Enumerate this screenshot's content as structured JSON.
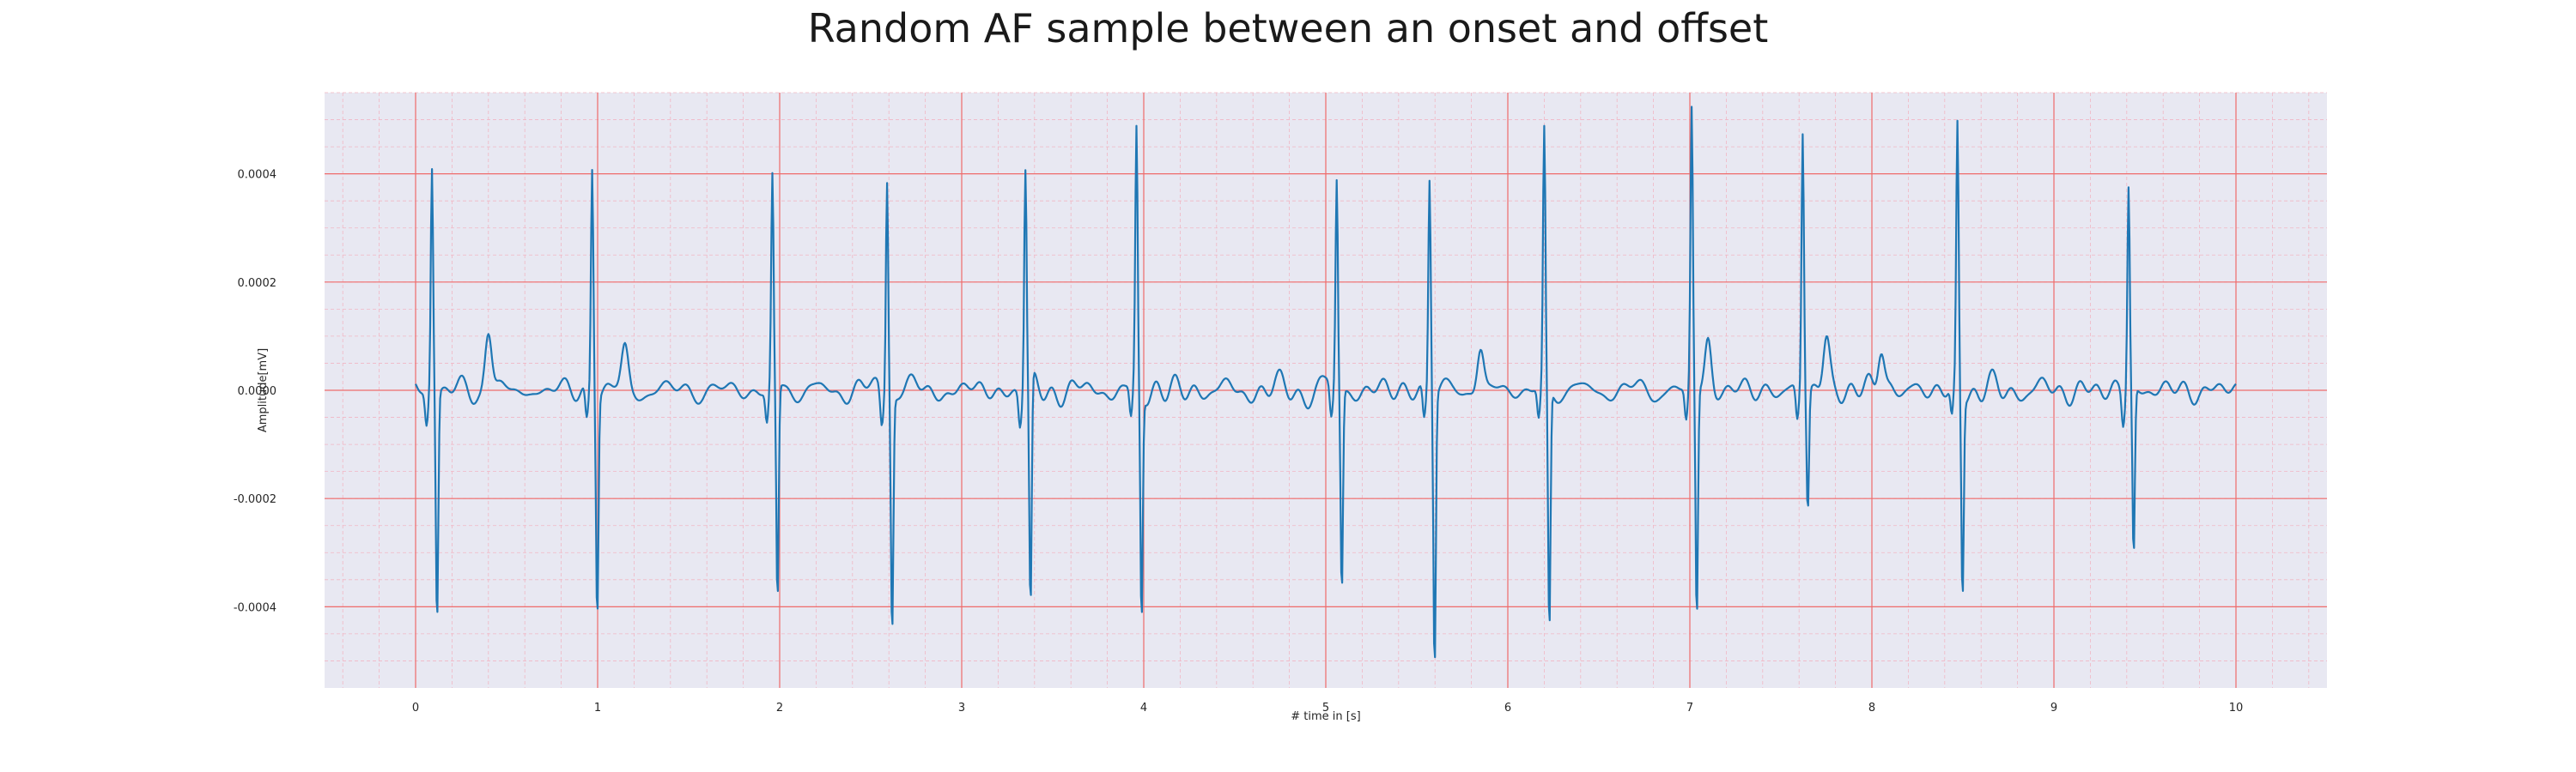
{
  "chart_data": {
    "type": "line",
    "title": "Random AF sample between an onset and offset",
    "xlabel": "# time in [s]",
    "ylabel": "Amplitude[mV]",
    "xlim": [
      -0.5,
      10.5
    ],
    "ylim": [
      -0.00055,
      0.00055
    ],
    "xticks": [
      0,
      1,
      2,
      3,
      4,
      5,
      6,
      7,
      8,
      9,
      10
    ],
    "xtick_labels": [
      "0",
      "1",
      "2",
      "3",
      "4",
      "5",
      "6",
      "7",
      "8",
      "9",
      "10"
    ],
    "yticks": [
      -0.0004,
      -0.0002,
      0.0,
      0.0002,
      0.0004
    ],
    "ytick_labels": [
      "-0.0004",
      "-0.0002",
      "0.0000",
      "0.0002",
      "0.0004"
    ],
    "grid": true,
    "minor_grid": true,
    "background_color": "#e8e8f2",
    "major_grid_color": "#ef6b6b",
    "minor_grid_color": "#f1b6c4",
    "series": [
      {
        "color": "#1f77b4",
        "x_start": 0.0,
        "x_end": 10.0,
        "beats": [
          {
            "t": 0.09,
            "peak": 0.00042,
            "trough": -0.00042
          },
          {
            "t": 0.97,
            "peak": 0.00042,
            "trough": -0.0004
          },
          {
            "t": 1.96,
            "peak": 0.00039,
            "trough": -0.0004
          },
          {
            "t": 2.59,
            "peak": 0.00041,
            "trough": -0.00043
          },
          {
            "t": 3.35,
            "peak": 0.00041,
            "trough": -0.00043
          },
          {
            "t": 3.96,
            "peak": 0.00047,
            "trough": -0.00042
          },
          {
            "t": 5.06,
            "peak": 0.00039,
            "trough": -0.00037
          },
          {
            "t": 5.57,
            "peak": 0.0004,
            "trough": -0.0005
          },
          {
            "t": 6.2,
            "peak": 0.00047,
            "trough": -0.00045
          },
          {
            "t": 7.01,
            "peak": 0.00051,
            "trough": -0.00043
          },
          {
            "t": 7.62,
            "peak": 0.00048,
            "trough": -0.00022
          },
          {
            "t": 8.47,
            "peak": 0.00048,
            "trough": -0.00037
          },
          {
            "t": 9.41,
            "peak": 0.00038,
            "trough": -0.00031
          }
        ],
        "baseline_noise_amplitude": 4e-05,
        "extra_bumps": [
          {
            "t": 0.4,
            "value": 0.00011
          },
          {
            "t": 1.15,
            "value": 7e-05
          },
          {
            "t": 5.85,
            "value": 8e-05
          },
          {
            "t": 7.1,
            "value": 0.0001
          },
          {
            "t": 7.75,
            "value": 0.0001
          },
          {
            "t": 8.05,
            "value": 9e-05
          }
        ]
      }
    ]
  }
}
